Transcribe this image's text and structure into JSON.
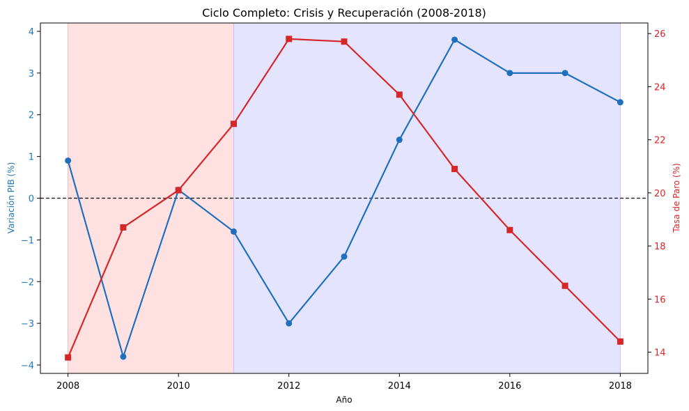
{
  "chart_data": {
    "type": "line",
    "title": "Ciclo Completo: Crisis y Recuperación (2008-2018)",
    "xlabel": "Año",
    "ylabel_left": "Variación PIB (%)",
    "ylabel_right": "Tasa de Paro (%)",
    "x": [
      2008,
      2009,
      2010,
      2011,
      2012,
      2013,
      2014,
      2015,
      2016,
      2017,
      2018
    ],
    "xlim": [
      2007.5,
      2018.5
    ],
    "x_ticks": [
      2008,
      2010,
      2012,
      2014,
      2016,
      2018
    ],
    "ylim_left": [
      -4.2,
      4.2
    ],
    "y_ticks_left": [
      4,
      3,
      2,
      1,
      0,
      -1,
      -2,
      -3,
      -4
    ],
    "ylim_right": [
      13.2,
      26.4
    ],
    "y_ticks_right": [
      14,
      16,
      18,
      20,
      22,
      24,
      26
    ],
    "series": [
      {
        "axis": "left",
        "marker": "circle",
        "color": "#1f6fbf",
        "values": [
          0.9,
          -3.8,
          0.2,
          -0.8,
          -3.0,
          -1.4,
          1.4,
          3.8,
          3.0,
          3.0,
          2.3
        ]
      },
      {
        "axis": "right",
        "marker": "square",
        "color": "#d62728",
        "values": [
          13.8,
          18.7,
          20.1,
          22.6,
          25.8,
          25.7,
          23.7,
          20.9,
          18.6,
          16.5,
          14.4
        ]
      }
    ],
    "spans": [
      {
        "x0": 2008,
        "x1": 2011,
        "color": "#ffe1e1"
      },
      {
        "x0": 2011,
        "x1": 2018,
        "color": "#e4e4ff"
      }
    ],
    "reference_line": {
      "axis": "left",
      "y": 0,
      "style": "dashed",
      "color": "#000000"
    },
    "grid": false
  }
}
